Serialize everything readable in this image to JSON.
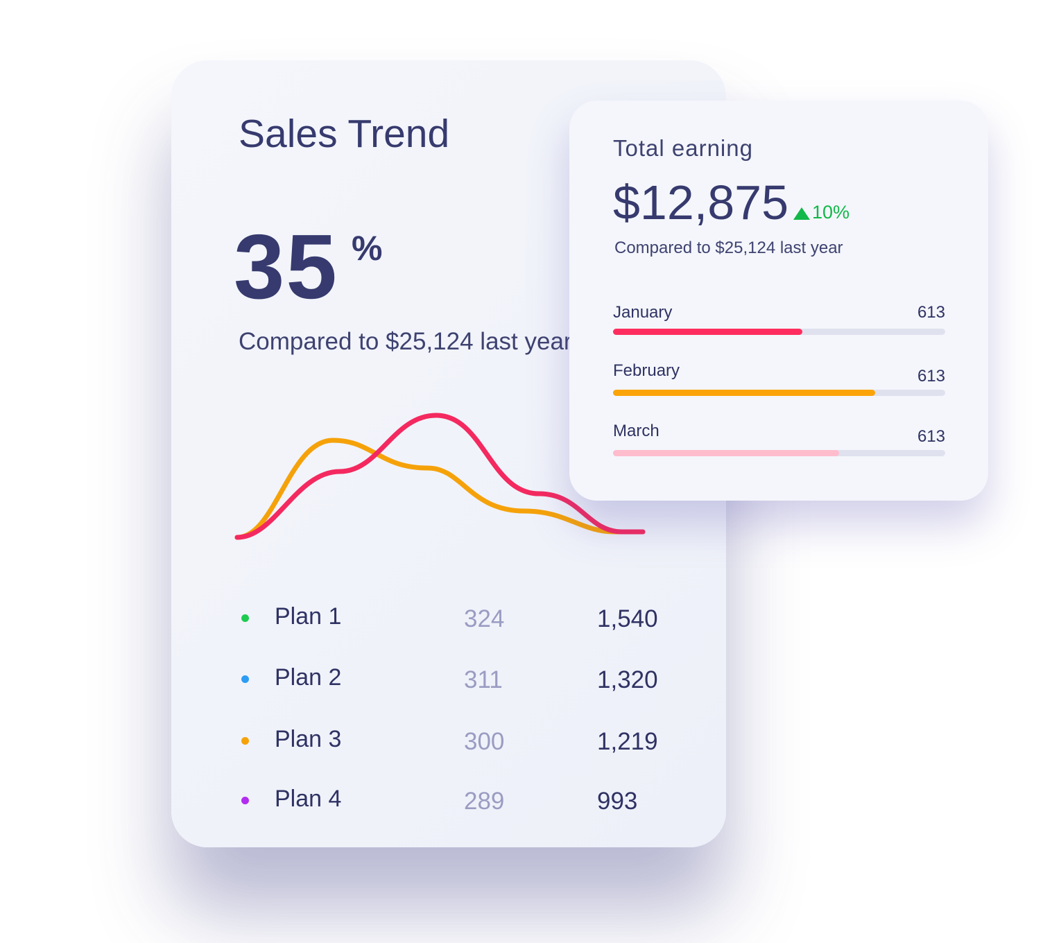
{
  "sales_trend": {
    "title": "Sales Trend",
    "value": 35,
    "unit": "%",
    "comparison": "Compared to $25,124 last year",
    "plans": [
      {
        "name": "Plan 1",
        "count": 324,
        "total": "1,540"
      },
      {
        "name": "Plan 2",
        "count": 311,
        "total": "1,320"
      },
      {
        "name": "Plan 3",
        "count": 300,
        "total": "1,219"
      },
      {
        "name": "Plan 4",
        "count": 289,
        "total": "993"
      }
    ]
  },
  "total_earning": {
    "title": "Total earning",
    "amount": "$12,875",
    "change": "10%",
    "comparison": "Compared to $25,124 last year",
    "months": [
      {
        "name": "January",
        "value": 613,
        "share": 57
      },
      {
        "name": "February",
        "value": 613,
        "share": 79
      },
      {
        "name": "March",
        "value": 613,
        "share": 68
      }
    ]
  }
}
